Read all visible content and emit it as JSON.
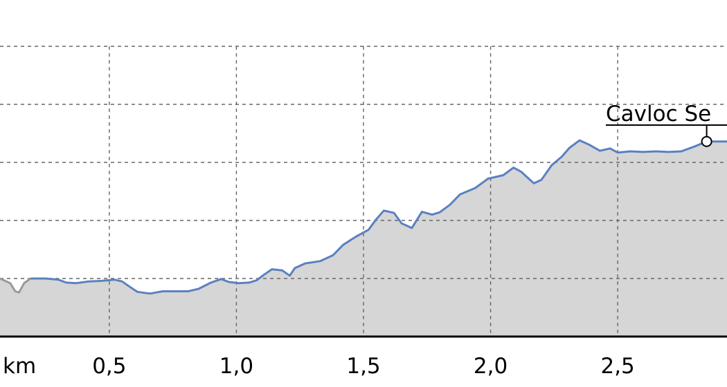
{
  "chart_data": {
    "type": "area",
    "title": "",
    "xlabel": "",
    "ylabel": "",
    "x_unit_label": "km",
    "x_tick_values": [
      0.5,
      1.0,
      1.5,
      2.0,
      2.5
    ],
    "x_tick_labels": [
      "0,5",
      "1,0",
      "1,5",
      "2,0",
      "2,5"
    ],
    "xlim": [
      0.07,
      2.93
    ],
    "y_grid_levels": [
      1,
      2,
      3,
      4,
      5
    ],
    "ylim": [
      0,
      6
    ],
    "grid": true,
    "colors": {
      "line": "#5b80c0",
      "line_start": "#999999",
      "fill": "#d6d6d6",
      "grid": "#666666"
    },
    "annotations": [
      {
        "label": "Cavloc Se",
        "x": 2.85,
        "y": 3.36
      }
    ],
    "series": [
      {
        "values": [
          [
            0.07,
            1.0
          ],
          [
            0.11,
            0.92
          ],
          [
            0.13,
            0.78
          ],
          [
            0.145,
            0.76
          ],
          [
            0.165,
            0.92
          ],
          [
            0.19,
            1.0
          ],
          [
            0.25,
            1.0
          ],
          [
            0.3,
            0.98
          ],
          [
            0.33,
            0.93
          ],
          [
            0.37,
            0.92
          ],
          [
            0.42,
            0.95
          ],
          [
            0.47,
            0.96
          ],
          [
            0.52,
            0.98
          ],
          [
            0.55,
            0.95
          ],
          [
            0.58,
            0.86
          ],
          [
            0.61,
            0.77
          ],
          [
            0.66,
            0.74
          ],
          [
            0.71,
            0.78
          ],
          [
            0.76,
            0.78
          ],
          [
            0.81,
            0.78
          ],
          [
            0.85,
            0.82
          ],
          [
            0.9,
            0.93
          ],
          [
            0.94,
            0.99
          ],
          [
            0.97,
            0.94
          ],
          [
            1.01,
            0.92
          ],
          [
            1.05,
            0.93
          ],
          [
            1.08,
            0.97
          ],
          [
            1.11,
            1.07
          ],
          [
            1.14,
            1.16
          ],
          [
            1.18,
            1.14
          ],
          [
            1.21,
            1.05
          ],
          [
            1.23,
            1.18
          ],
          [
            1.27,
            1.26
          ],
          [
            1.33,
            1.3
          ],
          [
            1.38,
            1.4
          ],
          [
            1.42,
            1.58
          ],
          [
            1.47,
            1.72
          ],
          [
            1.52,
            1.84
          ],
          [
            1.55,
            2.02
          ],
          [
            1.58,
            2.17
          ],
          [
            1.62,
            2.13
          ],
          [
            1.65,
            1.95
          ],
          [
            1.69,
            1.87
          ],
          [
            1.73,
            2.15
          ],
          [
            1.77,
            2.1
          ],
          [
            1.8,
            2.14
          ],
          [
            1.84,
            2.27
          ],
          [
            1.88,
            2.45
          ],
          [
            1.94,
            2.56
          ],
          [
            1.99,
            2.72
          ],
          [
            2.05,
            2.78
          ],
          [
            2.09,
            2.91
          ],
          [
            2.12,
            2.84
          ],
          [
            2.15,
            2.72
          ],
          [
            2.17,
            2.64
          ],
          [
            2.2,
            2.7
          ],
          [
            2.24,
            2.95
          ],
          [
            2.28,
            3.1
          ],
          [
            2.31,
            3.25
          ],
          [
            2.35,
            3.38
          ],
          [
            2.39,
            3.3
          ],
          [
            2.43,
            3.2
          ],
          [
            2.47,
            3.24
          ],
          [
            2.5,
            3.17
          ],
          [
            2.55,
            3.19
          ],
          [
            2.6,
            3.18
          ],
          [
            2.65,
            3.19
          ],
          [
            2.7,
            3.18
          ],
          [
            2.75,
            3.19
          ],
          [
            2.8,
            3.27
          ],
          [
            2.85,
            3.36
          ],
          [
            2.93,
            3.36
          ]
        ]
      }
    ]
  }
}
